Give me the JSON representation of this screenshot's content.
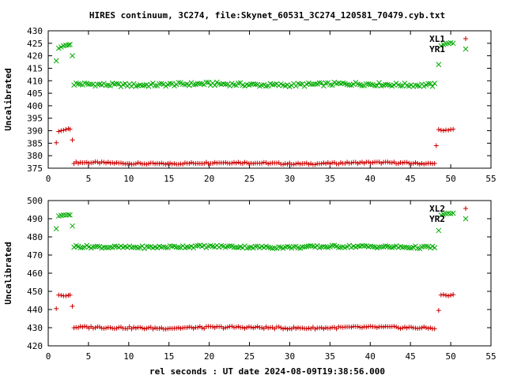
{
  "title": "HIRES continuum, 3C274, file:Skynet_60531_3C274_120581_70479.cyb.txt",
  "xlabel": "rel seconds : UT date 2024-08-09T19:38:56.000",
  "colors": {
    "red": "#cc0000",
    "green": "#00aa00"
  },
  "chart_data": [
    {
      "type": "scatter",
      "ylabel": "Uncalibrated",
      "xlim": [
        0,
        55
      ],
      "ylim": [
        375,
        430
      ],
      "xticks": [
        0,
        5,
        10,
        15,
        20,
        25,
        30,
        35,
        40,
        45,
        50,
        55
      ],
      "yticks": [
        375,
        380,
        385,
        390,
        395,
        400,
        405,
        410,
        415,
        420,
        425,
        430
      ],
      "legend_position": "top-right",
      "series": [
        {
          "name": "XL1",
          "marker": "+",
          "color": "#cc0000",
          "points": [
            [
              1.0,
              385.2
            ],
            [
              1.3,
              389.7
            ],
            [
              1.6,
              390.0
            ],
            [
              1.9,
              390.2
            ],
            [
              2.2,
              390.5
            ],
            [
              2.5,
              390.8
            ],
            [
              2.7,
              390.6
            ],
            [
              3.0,
              386.3
            ],
            [
              48.2,
              384.0
            ],
            [
              48.5,
              390.5
            ],
            [
              48.8,
              390.2
            ],
            [
              49.1,
              390.0
            ],
            [
              49.4,
              390.3
            ],
            [
              49.7,
              390.2
            ],
            [
              50.0,
              390.5
            ],
            [
              50.3,
              390.6
            ]
          ],
          "base": 377.0,
          "base_x_start": 3.2,
          "base_x_end": 48.0,
          "base_amp": 0.35
        },
        {
          "name": "YR1",
          "marker": "x",
          "color": "#00aa00",
          "points": [
            [
              1.0,
              418.0
            ],
            [
              1.3,
              423.0
            ],
            [
              1.6,
              423.5
            ],
            [
              1.9,
              424.0
            ],
            [
              2.2,
              424.2
            ],
            [
              2.5,
              424.3
            ],
            [
              2.7,
              424.5
            ],
            [
              3.0,
              420.0
            ],
            [
              48.5,
              416.5
            ],
            [
              48.8,
              424.0
            ],
            [
              49.1,
              424.5
            ],
            [
              49.4,
              424.8
            ],
            [
              49.7,
              425.0
            ],
            [
              50.0,
              425.2
            ],
            [
              50.3,
              425.0
            ]
          ],
          "base": 408.5,
          "base_x_start": 3.2,
          "base_x_end": 48.0,
          "base_amp": 0.7
        }
      ]
    },
    {
      "type": "scatter",
      "ylabel": "Uncalibrated",
      "xlim": [
        0,
        55
      ],
      "ylim": [
        420,
        500
      ],
      "xticks": [
        0,
        5,
        10,
        15,
        20,
        25,
        30,
        35,
        40,
        45,
        50,
        55
      ],
      "yticks": [
        420,
        430,
        440,
        450,
        460,
        470,
        480,
        490,
        500
      ],
      "legend_position": "top-right",
      "series": [
        {
          "name": "XL2",
          "marker": "+",
          "color": "#cc0000",
          "points": [
            [
              1.0,
              440.5
            ],
            [
              1.3,
              448.0
            ],
            [
              1.6,
              447.8
            ],
            [
              1.9,
              447.5
            ],
            [
              2.2,
              447.5
            ],
            [
              2.5,
              447.8
            ],
            [
              2.7,
              448.0
            ],
            [
              3.0,
              441.8
            ],
            [
              48.5,
              439.5
            ],
            [
              48.8,
              448.0
            ],
            [
              49.1,
              448.2
            ],
            [
              49.4,
              447.8
            ],
            [
              49.7,
              447.5
            ],
            [
              50.0,
              447.8
            ],
            [
              50.3,
              448.2
            ]
          ],
          "base": 430.0,
          "base_x_start": 3.2,
          "base_x_end": 48.0,
          "base_amp": 0.6
        },
        {
          "name": "YR2",
          "marker": "x",
          "color": "#00aa00",
          "points": [
            [
              1.0,
              484.5
            ],
            [
              1.3,
              491.5
            ],
            [
              1.6,
              491.8
            ],
            [
              1.9,
              492.0
            ],
            [
              2.2,
              492.0
            ],
            [
              2.5,
              492.2
            ],
            [
              2.7,
              492.0
            ],
            [
              3.0,
              486.0
            ],
            [
              48.5,
              483.5
            ],
            [
              48.8,
              492.0
            ],
            [
              49.1,
              492.5
            ],
            [
              49.4,
              492.8
            ],
            [
              49.7,
              493.0
            ],
            [
              50.0,
              492.8
            ],
            [
              50.3,
              493.0
            ]
          ],
          "base": 474.5,
          "base_x_start": 3.2,
          "base_x_end": 48.0,
          "base_amp": 0.7
        }
      ]
    }
  ]
}
